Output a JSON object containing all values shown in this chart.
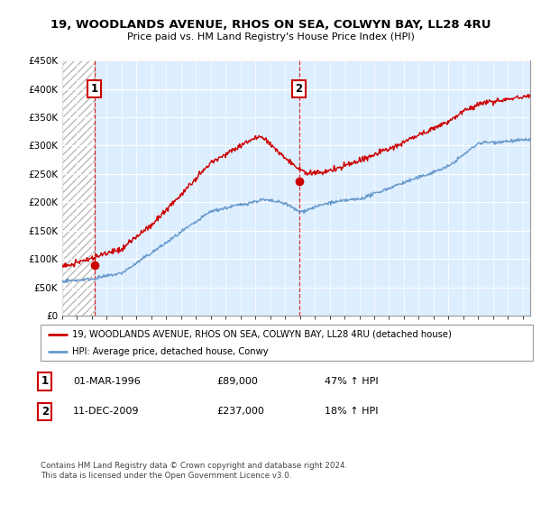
{
  "title": "19, WOODLANDS AVENUE, RHOS ON SEA, COLWYN BAY, LL28 4RU",
  "subtitle": "Price paid vs. HM Land Registry's House Price Index (HPI)",
  "ylim": [
    0,
    450000
  ],
  "yticks": [
    0,
    50000,
    100000,
    150000,
    200000,
    250000,
    300000,
    350000,
    400000,
    450000
  ],
  "ytick_labels": [
    "£0",
    "£50K",
    "£100K",
    "£150K",
    "£200K",
    "£250K",
    "£300K",
    "£350K",
    "£400K",
    "£450K"
  ],
  "sale1_date": 1996.17,
  "sale1_price": 89000,
  "sale1_label": "1",
  "sale2_date": 2009.94,
  "sale2_price": 237000,
  "sale2_label": "2",
  "legend_line1": "19, WOODLANDS AVENUE, RHOS ON SEA, COLWYN BAY, LL28 4RU (detached house)",
  "legend_line2": "HPI: Average price, detached house, Conwy",
  "table_row1": [
    "1",
    "01-MAR-1996",
    "£89,000",
    "47% ↑ HPI"
  ],
  "table_row2": [
    "2",
    "11-DEC-2009",
    "£237,000",
    "18% ↑ HPI"
  ],
  "footer": "Contains HM Land Registry data © Crown copyright and database right 2024.\nThis data is licensed under the Open Government Licence v3.0.",
  "red_color": "#cc0000",
  "blue_color": "#6699cc",
  "bg_color": "#ddeeff",
  "xmin": 1994,
  "xmax": 2025.5
}
